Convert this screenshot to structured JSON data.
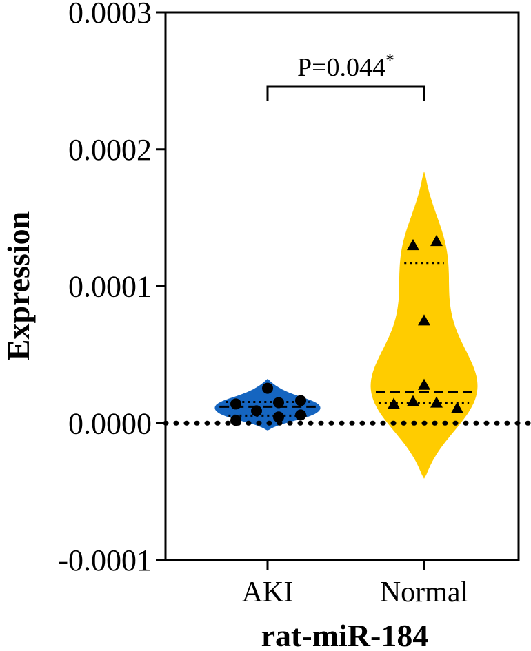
{
  "chart_data": {
    "type": "violin",
    "title": "",
    "ylabel": "Expression",
    "xlabel": "rat-miR-184",
    "ylim": [
      -0.0001,
      0.0003
    ],
    "yticks": [
      "0.0003",
      "0.0002",
      "0.0001",
      "0.0000",
      "-0.0001"
    ],
    "ytick_values": [
      0.0003,
      0.0002,
      0.0001,
      0.0,
      -0.0001
    ],
    "categories": [
      "AKI",
      "Normal"
    ],
    "reference_line": 0.0,
    "grid": false,
    "series": [
      {
        "name": "AKI",
        "color": "#1565c0",
        "marker": "circle",
        "points": [
          2.55e-05,
          1.65e-05,
          1.5e-05,
          1.4e-05,
          9e-06,
          6e-06,
          4.5e-06,
          2e-06
        ],
        "median": 1.2e-05,
        "quartiles": [
          5.5e-06,
          1.55e-05
        ],
        "range": [
          -5e-06,
          3.2e-05
        ]
      },
      {
        "name": "Normal",
        "color": "#ffcc00",
        "marker": "triangle",
        "points": [
          0.000133,
          0.00013,
          7.5e-05,
          2.8e-05,
          1.6e-05,
          1.5e-05,
          1.4e-05,
          1.1e-05
        ],
        "median": 2.25e-05,
        "quartiles": [
          1.5e-05,
          0.000117
        ],
        "range": [
          -4e-05,
          0.000183
        ]
      }
    ],
    "annotation": {
      "label": "P=0.044",
      "mark": "*",
      "between": [
        "AKI",
        "Normal"
      ]
    }
  }
}
